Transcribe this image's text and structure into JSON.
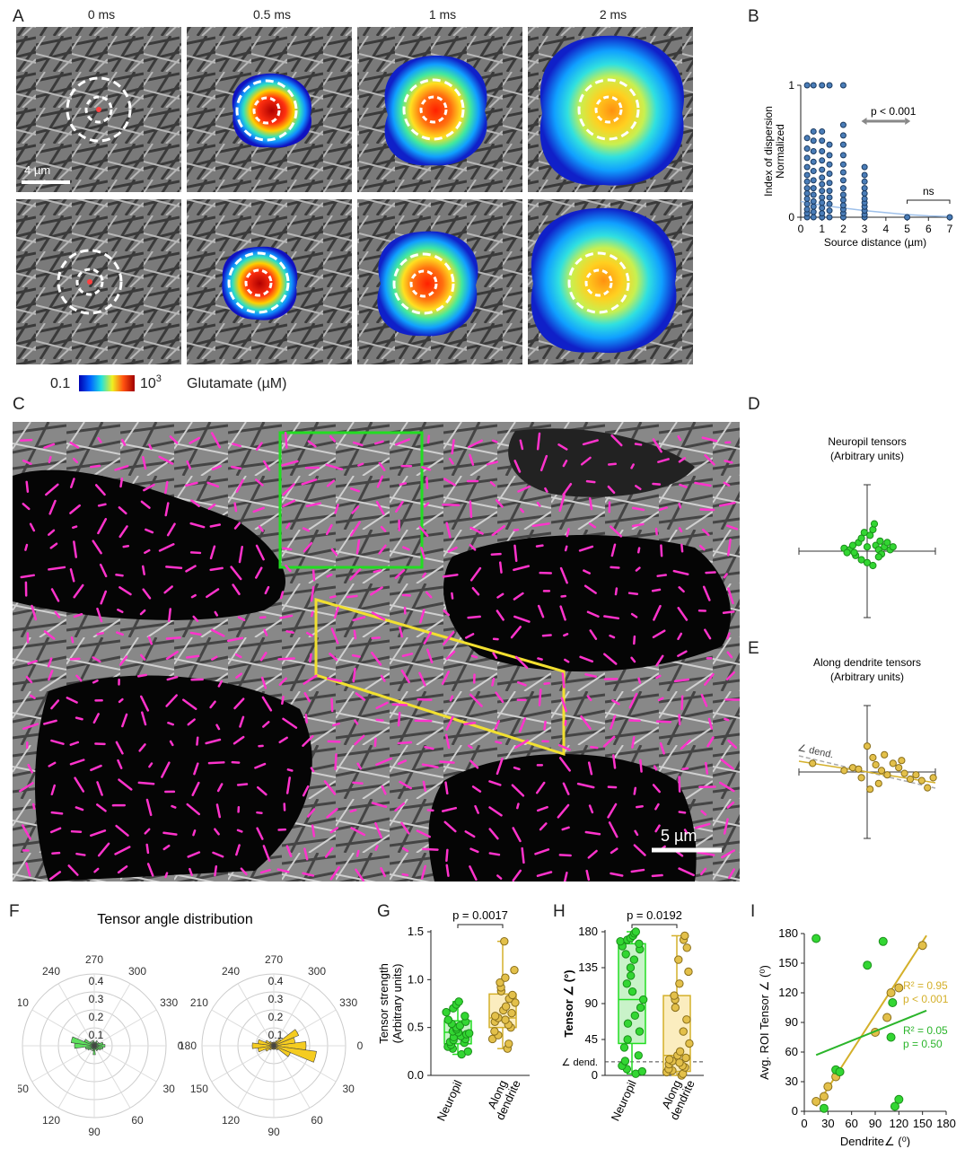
{
  "panels": {
    "A": {
      "label": "A",
      "time_labels": [
        "0 ms",
        "0.5 ms",
        "1 ms",
        "2 ms"
      ],
      "scalebar": "4 µm",
      "colorbar": {
        "min_label": "0.1",
        "max_base": "10",
        "max_exp": "3",
        "title": "Glutamate (µM)"
      }
    },
    "B": {
      "label": "B"
    },
    "C": {
      "label": "C",
      "scalebar": "5 µm",
      "roi_colors": {
        "neuropil": "#22dd22",
        "dendrite": "#f2e030"
      },
      "vector_color": "#ff33cc"
    },
    "D": {
      "label": "D"
    },
    "E": {
      "label": "E"
    },
    "F": {
      "label": "F"
    },
    "G": {
      "label": "G"
    },
    "H": {
      "label": "H"
    },
    "I": {
      "label": "I"
    }
  },
  "chart_data": [
    {
      "id": "B",
      "type": "scatter",
      "xlabel": "Source distance (µm)",
      "ylabel_lines": [
        "Index of dispersion",
        "Normalized"
      ],
      "xlim": [
        0,
        7
      ],
      "ylim": [
        0,
        1
      ],
      "xticks": [
        "0",
        "1",
        "2",
        "3",
        "4",
        "5",
        "6",
        "7"
      ],
      "yticks": [
        "0",
        "1"
      ],
      "annotations": {
        "sig": "p < 0.001",
        "ns": "ns"
      },
      "columns": [
        {
          "x": 0.3,
          "y": [
            0,
            0.03,
            0.06,
            0.1,
            0.14,
            0.18,
            0.22,
            0.27,
            0.32,
            0.38,
            0.45,
            0.52,
            0.6,
            1
          ]
        },
        {
          "x": 0.6,
          "y": [
            0,
            0.04,
            0.08,
            0.12,
            0.17,
            0.22,
            0.28,
            0.35,
            0.42,
            0.5,
            0.58,
            0.65,
            1
          ]
        },
        {
          "x": 1.0,
          "y": [
            0,
            0.03,
            0.07,
            0.11,
            0.15,
            0.2,
            0.25,
            0.3,
            0.36,
            0.43,
            0.5,
            0.58,
            0.65,
            1
          ]
        },
        {
          "x": 1.35,
          "y": [
            0,
            0.05,
            0.1,
            0.15,
            0.2,
            0.26,
            0.33,
            0.4,
            0.47,
            0.55,
            1
          ]
        },
        {
          "x": 2.0,
          "y": [
            0,
            0.03,
            0.06,
            0.09,
            0.13,
            0.17,
            0.22,
            0.28,
            0.34,
            0.4,
            0.47,
            0.55,
            0.62,
            0.7,
            1
          ]
        },
        {
          "x": 3.0,
          "y": [
            0,
            0.02,
            0.05,
            0.08,
            0.11,
            0.14,
            0.18,
            0.22,
            0.27,
            0.32,
            0.38
          ]
        },
        {
          "x": 5.0,
          "y": [
            0
          ]
        },
        {
          "x": 7.0,
          "y": [
            0
          ]
        }
      ],
      "fit": {
        "x": [
          0,
          1,
          2,
          3,
          4,
          5,
          6,
          7
        ],
        "y": [
          0.12,
          0.09,
          0.07,
          0.05,
          0.035,
          0.02,
          0.01,
          0.005
        ]
      }
    },
    {
      "id": "D",
      "type": "scatter",
      "title_lines": [
        "Neuropil tensors",
        "(Arbitrary units)"
      ],
      "points": [
        [
          -0.8,
          0.1
        ],
        [
          -0.6,
          0.05
        ],
        [
          -0.5,
          0.2
        ],
        [
          -0.4,
          -0.15
        ],
        [
          -0.3,
          0.3
        ],
        [
          -0.2,
          0.45
        ],
        [
          -0.1,
          0.65
        ],
        [
          0,
          0.15
        ],
        [
          0.1,
          0.55
        ],
        [
          0.2,
          0.75
        ],
        [
          0.25,
          0.95
        ],
        [
          0.3,
          0.2
        ],
        [
          0.4,
          0.05
        ],
        [
          0.5,
          -0.1
        ],
        [
          0.6,
          0.15
        ],
        [
          0.7,
          0.3
        ],
        [
          0.8,
          0.05
        ],
        [
          -0.2,
          -0.3
        ],
        [
          0,
          -0.4
        ],
        [
          0.2,
          -0.5
        ],
        [
          0.4,
          -0.2
        ],
        [
          -0.45,
          -0.05
        ],
        [
          0.45,
          0.35
        ],
        [
          0.9,
          0.15
        ],
        [
          -0.7,
          -0.05
        ]
      ]
    },
    {
      "id": "E",
      "type": "scatter",
      "title_lines": [
        "Along dendrite tensors",
        "(Arbitrary units)"
      ],
      "annotation": "∠ dend.",
      "points": [
        [
          -1.9,
          0.3
        ],
        [
          -0.5,
          0.15
        ],
        [
          -0.3,
          0.1
        ],
        [
          0,
          0.9
        ],
        [
          0.2,
          0.5
        ],
        [
          0.3,
          0.25
        ],
        [
          0.5,
          0.05
        ],
        [
          0.7,
          -0.1
        ],
        [
          0.9,
          0.3
        ],
        [
          1.1,
          0.15
        ],
        [
          1.3,
          -0.05
        ],
        [
          1.5,
          -0.25
        ],
        [
          1.7,
          -0.1
        ],
        [
          1.9,
          -0.3
        ],
        [
          2.1,
          -0.55
        ],
        [
          2.3,
          -0.2
        ],
        [
          -0.2,
          -0.2
        ],
        [
          0.1,
          -0.6
        ],
        [
          0.4,
          -0.4
        ],
        [
          -0.8,
          0.05
        ],
        [
          0.6,
          0.6
        ],
        [
          1.2,
          0.4
        ]
      ]
    },
    {
      "id": "F",
      "type": "polar",
      "title": "Tensor angle distribution",
      "angle_labels": [
        "0",
        "30",
        "60",
        "90",
        "120",
        "150",
        "180",
        "210",
        "240",
        "270",
        "300",
        "330"
      ],
      "r_ticks": [
        "0.1",
        "0.2",
        "0.3",
        "0.4"
      ],
      "series": [
        {
          "color": "#5ee05e",
          "bins_deg": [
            0,
            15,
            30,
            45,
            60,
            75,
            90,
            105,
            120,
            135,
            150,
            165,
            180,
            195,
            210,
            225,
            240,
            255,
            270,
            285,
            300,
            315,
            330,
            345
          ],
          "values": [
            0.06,
            0.05,
            0.04,
            0.03,
            0.03,
            0.02,
            0.05,
            0.03,
            0.02,
            0.03,
            0.04,
            0.05,
            0.11,
            0.13,
            0.06,
            0.03,
            0.02,
            0.03,
            0.02,
            0.02,
            0.03,
            0.02,
            0.03,
            0.05
          ]
        },
        {
          "color": "#f5cc20",
          "bins_deg": [
            0,
            15,
            30,
            45,
            60,
            75,
            90,
            105,
            120,
            135,
            150,
            165,
            180,
            195,
            210,
            225,
            240,
            255,
            270,
            285,
            300,
            315,
            330,
            345
          ],
          "values": [
            0.18,
            0.24,
            0.1,
            0.03,
            0.02,
            0.02,
            0.02,
            0.02,
            0.02,
            0.03,
            0.05,
            0.09,
            0.12,
            0.09,
            0.05,
            0.03,
            0.02,
            0.02,
            0.02,
            0.02,
            0.03,
            0.05,
            0.15,
            0.12
          ]
        }
      ]
    },
    {
      "id": "G",
      "type": "box",
      "ylabel_lines": [
        "Tensor strength",
        "(Arbitrary units)"
      ],
      "ylim": [
        0,
        1.5
      ],
      "yticks": [
        "0.0",
        "0.5",
        "1.0",
        "1.5"
      ],
      "p_label": "p = 0.0017",
      "groups": [
        {
          "name": "Neuropil",
          "color": "#22dd22",
          "fill": "#c9f3c9",
          "q1": 0.33,
          "median": 0.45,
          "q3": 0.57,
          "min": 0.22,
          "max": 0.77,
          "points": [
            0.22,
            0.25,
            0.28,
            0.3,
            0.32,
            0.34,
            0.35,
            0.37,
            0.38,
            0.4,
            0.41,
            0.43,
            0.44,
            0.45,
            0.46,
            0.48,
            0.5,
            0.52,
            0.54,
            0.56,
            0.58,
            0.62,
            0.66,
            0.7,
            0.74,
            0.77
          ]
        },
        {
          "name_lines": [
            "Along",
            "dendrite"
          ],
          "color": "#d4b02a",
          "fill": "#fbedbf",
          "q1": 0.5,
          "median": 0.6,
          "q3": 0.85,
          "min": 0.28,
          "max": 1.4,
          "points": [
            0.28,
            0.33,
            0.38,
            0.42,
            0.46,
            0.5,
            0.53,
            0.56,
            0.58,
            0.6,
            0.62,
            0.65,
            0.68,
            0.72,
            0.76,
            0.8,
            0.84,
            0.88,
            0.92,
            0.97,
            1.02,
            1.1,
            1.4
          ]
        }
      ]
    },
    {
      "id": "H",
      "type": "box",
      "ylabel": "Tensor ∠ (°)",
      "ylim": [
        0,
        180
      ],
      "yticks": [
        "0",
        "45",
        "90",
        "135",
        "180"
      ],
      "ref_label": "∠ dend.",
      "ref_value": 17,
      "p_label": "p = 0.0192",
      "groups": [
        {
          "name": "Neuropil",
          "color": "#22dd22",
          "fill": "#c9f3c9",
          "q1": 40,
          "median": 95,
          "q3": 165,
          "min": 2,
          "max": 180,
          "points": [
            2,
            5,
            8,
            12,
            18,
            25,
            35,
            45,
            55,
            65,
            75,
            85,
            95,
            105,
            115,
            125,
            135,
            145,
            152,
            158,
            162,
            165,
            168,
            170,
            172,
            175,
            178,
            180
          ]
        },
        {
          "name_lines": [
            "Along",
            "dendrite"
          ],
          "color": "#d4b02a",
          "fill": "#fbedbf",
          "q1": 5,
          "median": 25,
          "q3": 100,
          "min": 0,
          "max": 175,
          "points": [
            0,
            2,
            4,
            6,
            8,
            10,
            12,
            14,
            16,
            18,
            20,
            22,
            25,
            30,
            40,
            55,
            70,
            85,
            95,
            100,
            115,
            130,
            145,
            160,
            170,
            175
          ]
        }
      ]
    },
    {
      "id": "I",
      "type": "scatter",
      "xlabel": "Dendrite∠ (⁰)",
      "ylabel": "Avg. ROI Tensor ∠ (⁰)",
      "xlim": [
        0,
        180
      ],
      "ylim": [
        0,
        180
      ],
      "xticks": [
        "0",
        "30",
        "60",
        "90",
        "120",
        "150",
        "180"
      ],
      "yticks": [
        "0",
        "30",
        "60",
        "90",
        "120",
        "150",
        "180"
      ],
      "series": [
        {
          "color": "#d4b02a",
          "r2": "R² = 0.95",
          "p": "p < 0.001",
          "points": [
            [
              15,
              10
            ],
            [
              25,
              15
            ],
            [
              30,
              25
            ],
            [
              40,
              35
            ],
            [
              45,
              40
            ],
            [
              90,
              80
            ],
            [
              105,
              95
            ],
            [
              110,
              120
            ],
            [
              120,
              125
            ],
            [
              150,
              168
            ]
          ],
          "fit": [
            [
              15,
              5
            ],
            [
              155,
              178
            ]
          ]
        },
        {
          "color": "#2bb52b",
          "r2": "R² = 0.05",
          "p": "p = 0.50",
          "points": [
            [
              15,
              175
            ],
            [
              25,
              3
            ],
            [
              40,
              42
            ],
            [
              45,
              40
            ],
            [
              80,
              148
            ],
            [
              100,
              172
            ],
            [
              110,
              75
            ],
            [
              115,
              5
            ],
            [
              120,
              12
            ],
            [
              112,
              110
            ]
          ],
          "fit": [
            [
              15,
              57
            ],
            [
              155,
              102
            ]
          ]
        }
      ]
    }
  ]
}
